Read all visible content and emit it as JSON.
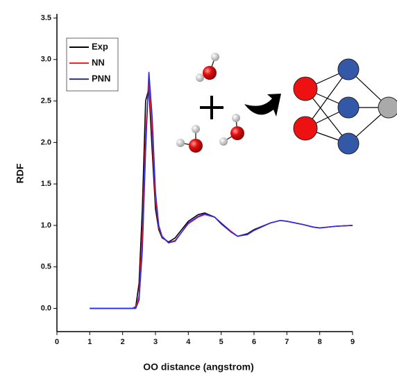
{
  "chart_data": {
    "type": "line",
    "x_label": "OO distance (angstrom)",
    "y_label": "RDF",
    "x": [
      1,
      2,
      2.3,
      2.4,
      2.5,
      2.6,
      2.7,
      2.8,
      2.9,
      3.0,
      3.1,
      3.2,
      3.4,
      3.6,
      3.8,
      4.0,
      4.3,
      4.5,
      4.8,
      5.0,
      5.3,
      5.5,
      5.8,
      6.0,
      6.5,
      6.8,
      7.0,
      7.5,
      7.8,
      8.0,
      8.5,
      9.0
    ],
    "series": [
      {
        "name": "Exp",
        "color": "#000000",
        "values": [
          0,
          0,
          0,
          0.02,
          0.3,
          1.2,
          2.5,
          2.65,
          1.9,
          1.2,
          0.95,
          0.85,
          0.8,
          0.85,
          0.95,
          1.05,
          1.13,
          1.15,
          1.1,
          1.02,
          0.92,
          0.87,
          0.9,
          0.95,
          1.03,
          1.06,
          1.05,
          1.01,
          0.98,
          0.97,
          0.99,
          1.0
        ]
      },
      {
        "name": "NN",
        "color": "#ff2020",
        "values": [
          0,
          0,
          0,
          0.01,
          0.15,
          0.9,
          2.1,
          2.75,
          2.1,
          1.3,
          0.98,
          0.86,
          0.79,
          0.82,
          0.92,
          1.02,
          1.1,
          1.13,
          1.1,
          1.03,
          0.93,
          0.87,
          0.89,
          0.94,
          1.03,
          1.06,
          1.05,
          1.01,
          0.98,
          0.97,
          0.99,
          1.0
        ]
      },
      {
        "name": "PNN",
        "color": "#2a2af0",
        "values": [
          0,
          0,
          0,
          0,
          0.1,
          0.7,
          1.9,
          2.85,
          2.3,
          1.4,
          1.0,
          0.87,
          0.79,
          0.81,
          0.92,
          1.03,
          1.11,
          1.14,
          1.1,
          1.03,
          0.92,
          0.87,
          0.89,
          0.94,
          1.03,
          1.06,
          1.05,
          1.01,
          0.98,
          0.97,
          0.99,
          1.0
        ]
      }
    ],
    "xlim": [
      0,
      9
    ],
    "xticks": [
      0,
      1,
      2,
      3,
      4,
      5,
      6,
      7,
      8,
      9
    ],
    "ylim": [
      -0.28,
      3.55
    ],
    "yticks": [
      {
        "value": 0,
        "label": "0.0"
      },
      {
        "value": 0.5,
        "label": "0.5"
      },
      {
        "value": 1,
        "label": "1.0"
      },
      {
        "value": 1.5,
        "label": "1.5"
      },
      {
        "value": 2,
        "label": "2.0"
      },
      {
        "value": 2.5,
        "label": "2.5"
      },
      {
        "value": 3,
        "label": "3.0"
      },
      {
        "value": 3.5,
        "label": "3.5"
      }
    ],
    "legend": "upper left",
    "grid": false
  }
}
